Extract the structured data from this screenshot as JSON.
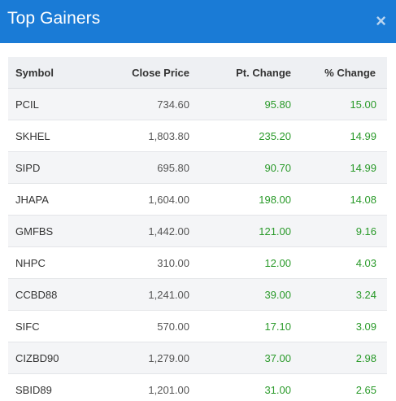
{
  "modal": {
    "title": "Top Gainers",
    "close_label": "×"
  },
  "table": {
    "headers": {
      "symbol": "Symbol",
      "close_price": "Close Price",
      "pt_change": "Pt. Change",
      "pct_change": "% Change"
    },
    "rows": [
      {
        "symbol": "PCIL",
        "close_price": "734.60",
        "pt_change": "95.80",
        "pct_change": "15.00"
      },
      {
        "symbol": "SKHEL",
        "close_price": "1,803.80",
        "pt_change": "235.20",
        "pct_change": "14.99"
      },
      {
        "symbol": "SIPD",
        "close_price": "695.80",
        "pt_change": "90.70",
        "pct_change": "14.99"
      },
      {
        "symbol": "JHAPA",
        "close_price": "1,604.00",
        "pt_change": "198.00",
        "pct_change": "14.08"
      },
      {
        "symbol": "GMFBS",
        "close_price": "1,442.00",
        "pt_change": "121.00",
        "pct_change": "9.16"
      },
      {
        "symbol": "NHPC",
        "close_price": "310.00",
        "pt_change": "12.00",
        "pct_change": "4.03"
      },
      {
        "symbol": "CCBD88",
        "close_price": "1,241.00",
        "pt_change": "39.00",
        "pct_change": "3.24"
      },
      {
        "symbol": "SIFC",
        "close_price": "570.00",
        "pt_change": "17.10",
        "pct_change": "3.09"
      },
      {
        "symbol": "CIZBD90",
        "close_price": "1,279.00",
        "pt_change": "37.00",
        "pct_change": "2.98"
      },
      {
        "symbol": "SBID89",
        "close_price": "1,201.00",
        "pt_change": "31.00",
        "pct_change": "2.65"
      }
    ]
  },
  "colors": {
    "header_bg": "#1a7bd6",
    "gain": "#2a9a2a"
  }
}
